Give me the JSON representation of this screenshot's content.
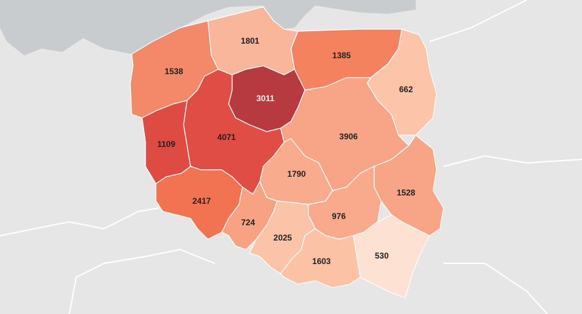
{
  "map": {
    "colors": {
      "background": "#e6e6e6",
      "sea": "#c8ccce",
      "land_outside": "#e8e8e8"
    },
    "regions": [
      {
        "id": "zachodniopomorskie",
        "value": "1801",
        "color": "#f7b495"
      },
      {
        "id": "pomorskie",
        "value": "1801",
        "color": "#f9b69a"
      },
      {
        "id": "warminsko-mazurskie",
        "value": "1385",
        "color": "#f5825f"
      },
      {
        "id": "podlaskie",
        "value": "662",
        "color": "#fcc4a8"
      },
      {
        "id": "zachodnie-pomorze",
        "value": "1538",
        "color": "#f4896a"
      },
      {
        "id": "kujawsko-pomorskie",
        "value": "3011",
        "color": "#b63a40"
      },
      {
        "id": "lubuskie",
        "value": "1109",
        "color": "#de4b43"
      },
      {
        "id": "wielkopolskie",
        "value": "4071",
        "color": "#e04d45"
      },
      {
        "id": "mazowieckie",
        "value": "3906",
        "color": "#f8a487"
      },
      {
        "id": "lodzkie",
        "value": "1790",
        "color": "#f8a487"
      },
      {
        "id": "dolnoslaskie",
        "value": "2417",
        "color": "#f27352"
      },
      {
        "id": "opolskie",
        "value": "724",
        "color": "#f7a283"
      },
      {
        "id": "lubelskie",
        "value": "1528",
        "color": "#f8a487"
      },
      {
        "id": "swietokrzyskie",
        "value": "976",
        "color": "#f8a487"
      },
      {
        "id": "slaskie",
        "value": "2025",
        "color": "#fbc3a7"
      },
      {
        "id": "malopolskie",
        "value": "1603",
        "color": "#fbc2a6"
      },
      {
        "id": "podkarpackie",
        "value": "530",
        "color": "#fde2d4"
      }
    ]
  }
}
